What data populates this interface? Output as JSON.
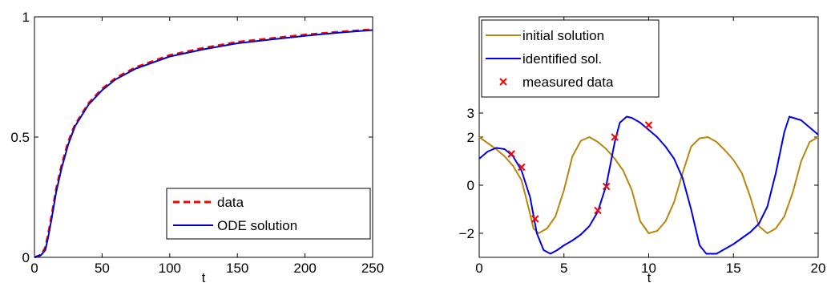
{
  "chart_data": [
    {
      "type": "line",
      "title": "",
      "xlabel": "t",
      "ylabel": "",
      "xlim": [
        0,
        250
      ],
      "ylim": [
        0,
        1
      ],
      "xticks": [
        "0",
        "50",
        "100",
        "150",
        "200",
        "250"
      ],
      "yticks": [
        "0",
        "0.5",
        "1"
      ],
      "grid": false,
      "legend_position": "bottom-right",
      "series": [
        {
          "name": "data",
          "color": "#ff0000",
          "style": "dashed",
          "x": [
            0,
            5,
            8,
            10,
            13,
            16,
            20,
            25,
            30,
            40,
            50,
            60,
            75,
            100,
            125,
            150,
            175,
            200,
            225,
            250
          ],
          "y": [
            0,
            0.01,
            0.04,
            0.09,
            0.18,
            0.28,
            0.38,
            0.48,
            0.55,
            0.64,
            0.7,
            0.745,
            0.79,
            0.84,
            0.87,
            0.895,
            0.91,
            0.925,
            0.937,
            0.947
          ]
        },
        {
          "name": "ODE solution",
          "color": "#0000cc",
          "style": "solid",
          "x": [
            0,
            5,
            8,
            10,
            13,
            16,
            20,
            25,
            30,
            40,
            50,
            60,
            75,
            100,
            125,
            150,
            175,
            200,
            225,
            250
          ],
          "y": [
            0,
            0.01,
            0.03,
            0.08,
            0.17,
            0.27,
            0.37,
            0.47,
            0.545,
            0.635,
            0.695,
            0.74,
            0.785,
            0.835,
            0.865,
            0.89,
            0.906,
            0.921,
            0.934,
            0.945
          ]
        }
      ]
    },
    {
      "type": "line",
      "title": "",
      "xlabel": "t",
      "ylabel": "",
      "xlim": [
        0,
        20
      ],
      "ylim": [
        -3,
        7
      ],
      "xticks": [
        "0",
        "5",
        "10",
        "15",
        "20"
      ],
      "yticks": [
        "-2",
        "0",
        "2",
        "3"
      ],
      "grid": false,
      "legend_position": "top-left",
      "series": [
        {
          "name": "initial solution",
          "color": "#b8860b",
          "style": "solid",
          "x": [
            0,
            0.5,
            1,
            1.5,
            2,
            2.5,
            3,
            3.2,
            3.5,
            4,
            4.5,
            5,
            5.5,
            6,
            6.5,
            7,
            7.5,
            8,
            8.5,
            9,
            9.5,
            10,
            10.5,
            11,
            11.5,
            12,
            12.5,
            13,
            13.5,
            14,
            14.5,
            15,
            15.5,
            16,
            16.5,
            17,
            17.5,
            18,
            18.5,
            19,
            19.5,
            20
          ],
          "y": [
            2.0,
            1.75,
            1.5,
            1.2,
            0.8,
            0.2,
            -1.2,
            -1.8,
            -2.0,
            -1.8,
            -1.3,
            -0.2,
            1.2,
            1.85,
            2.0,
            1.8,
            1.5,
            1.1,
            0.6,
            -0.2,
            -1.5,
            -2.0,
            -1.9,
            -1.5,
            -0.7,
            0.5,
            1.6,
            1.95,
            2.0,
            1.8,
            1.45,
            1.05,
            0.5,
            -0.5,
            -1.7,
            -2.0,
            -1.8,
            -1.3,
            -0.3,
            1.0,
            1.8,
            2.0
          ]
        },
        {
          "name": "identified sol.",
          "color": "#0000ee",
          "style": "solid",
          "x": [
            0,
            0.5,
            1,
            1.5,
            2,
            2.5,
            3,
            3.4,
            3.8,
            4.2,
            4.6,
            5,
            5.5,
            6,
            6.5,
            7,
            7.5,
            8,
            8.3,
            8.7,
            9,
            9.5,
            10,
            10.5,
            11,
            11.5,
            12,
            12.5,
            13,
            13.4,
            14,
            14.5,
            15,
            15.5,
            16,
            16.5,
            17,
            17.5,
            18,
            18.3,
            19,
            19.5,
            20
          ],
          "y": [
            1.1,
            1.4,
            1.55,
            1.5,
            1.2,
            0.6,
            -0.5,
            -2.0,
            -2.7,
            -2.85,
            -2.7,
            -2.5,
            -2.3,
            -2.05,
            -1.7,
            -1.1,
            0.0,
            1.8,
            2.6,
            2.85,
            2.8,
            2.6,
            2.3,
            2.0,
            1.6,
            1.1,
            0.3,
            -1.0,
            -2.5,
            -2.85,
            -2.85,
            -2.65,
            -2.45,
            -2.2,
            -1.95,
            -1.6,
            -0.9,
            0.5,
            2.2,
            2.85,
            2.7,
            2.4,
            2.1
          ]
        },
        {
          "name": "measured data",
          "color": "#ff0000",
          "style": "markers",
          "marker": "x",
          "x": [
            1.9,
            2.5,
            3.3,
            7.0,
            7.5,
            8.0,
            10.0
          ],
          "y": [
            1.3,
            0.75,
            -1.4,
            -1.05,
            -0.05,
            2.0,
            2.5
          ]
        }
      ]
    }
  ]
}
